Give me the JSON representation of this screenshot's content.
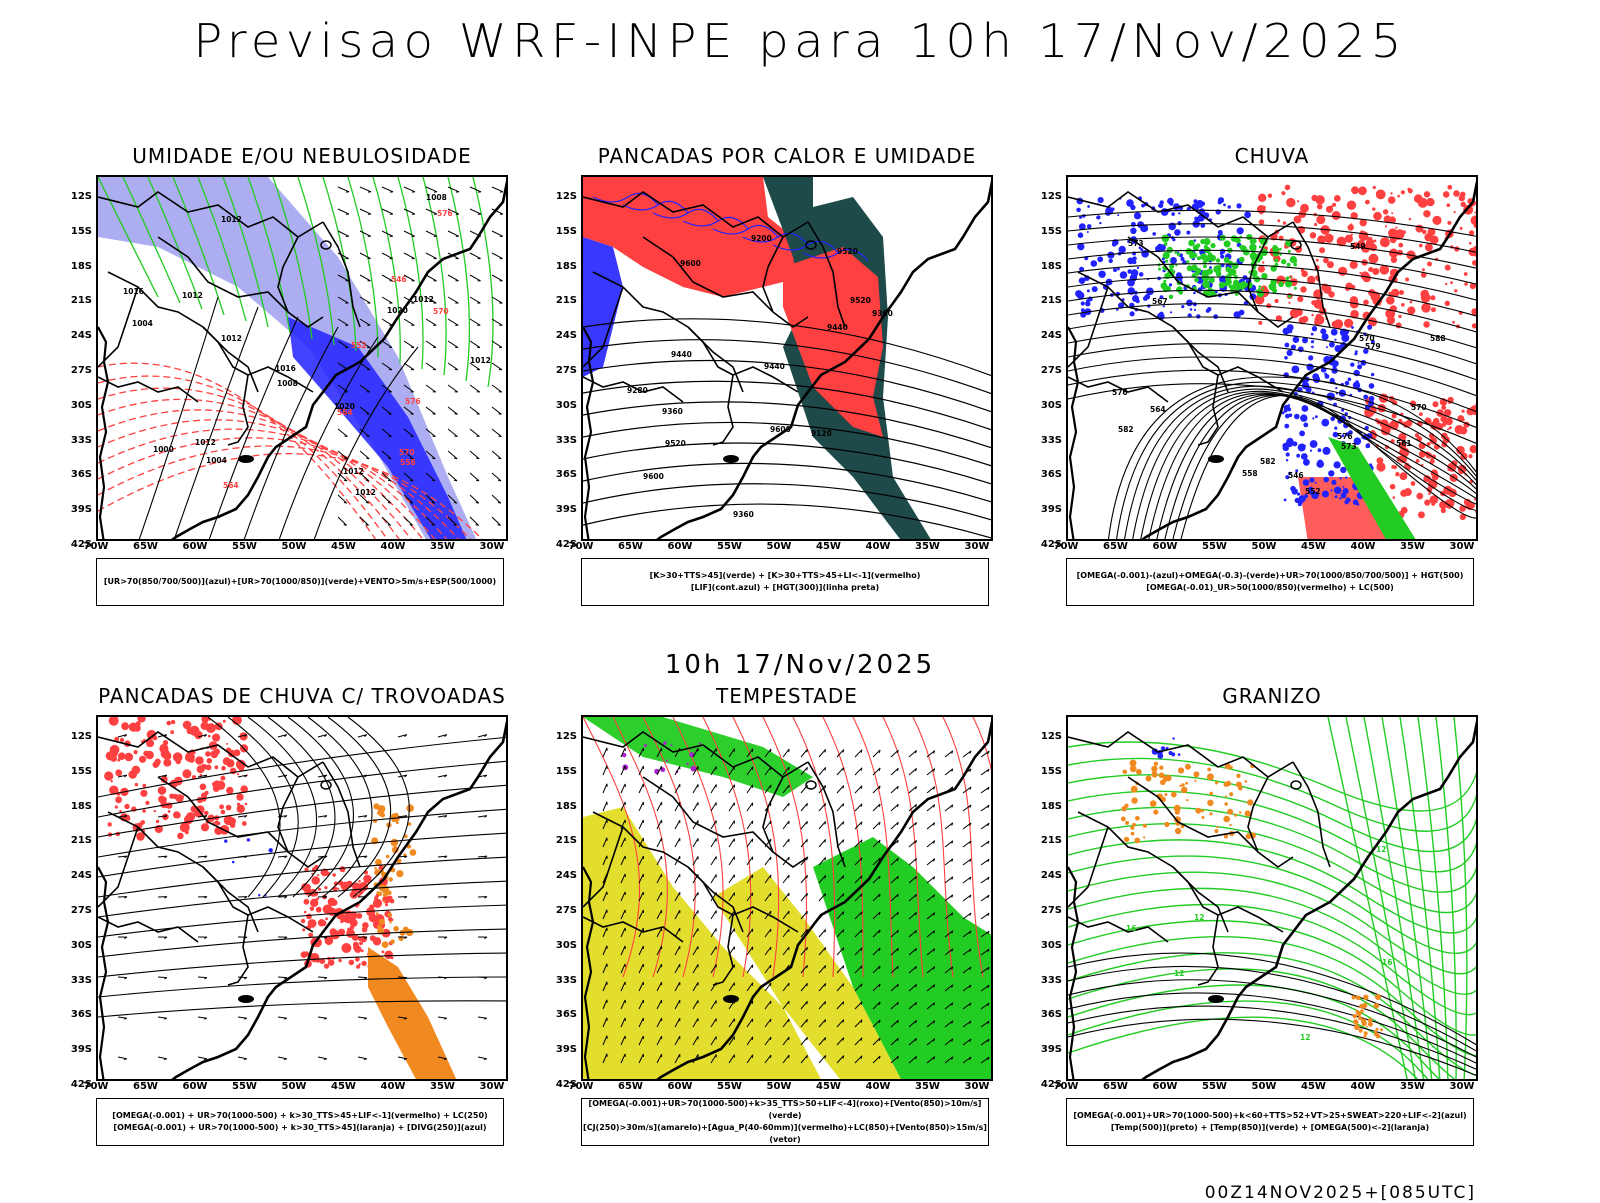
{
  "header": {
    "title": "Previsao WRF-INPE  para 10h 17/Nov/2025"
  },
  "subtitle": "10h 17/Nov/2025",
  "footer": "00Z14NOV2025+[085UTC]",
  "axes": {
    "lat": [
      "12S",
      "15S",
      "18S",
      "21S",
      "24S",
      "27S",
      "30S",
      "33S",
      "36S",
      "39S",
      "42S"
    ],
    "lon": [
      "70W",
      "65W",
      "60W",
      "55W",
      "50W",
      "45W",
      "40W",
      "35W",
      "30W"
    ]
  },
  "panels": [
    {
      "id": "umidade",
      "title": "UMIDADE E/OU NEBULOSIDADE",
      "legend": [
        "[UR>70(850/700/500)](azul)+[UR>70(1000/850)](verde)+VENTO>5m/s+ESP(500/1000)"
      ],
      "contour_labels": [
        "1012",
        "1012",
        "1012",
        "1012",
        "1012",
        "1012",
        "1012",
        "1012",
        "1008",
        "1004",
        "1000",
        "1016",
        "1016",
        "1020",
        "1020",
        "1008",
        "1004",
        "576",
        "576",
        "570",
        "570",
        "564",
        "564",
        "558",
        "552",
        "546"
      ]
    },
    {
      "id": "pancadas-calor",
      "title": "PANCADAS POR CALOR E UMIDADE",
      "legend": [
        "[K>30+TTS>45](verde) + [K>30+TTS>45+LI<-1](vermelho)",
        "[LIF](cont.azul) + [HGT(300)](linha preta)"
      ],
      "contour_labels": [
        "9600",
        "9520",
        "9600",
        "9520",
        "9600",
        "9440",
        "9360",
        "9520",
        "9360",
        "9440",
        "9280",
        "9200",
        "9120",
        "9440",
        "9360"
      ]
    },
    {
      "id": "chuva",
      "title": "CHUVA",
      "legend": [
        "[OMEGA(-0.001)-(azul)+OMEGA(-0.3)-(verde)+UR>70(1000/850/700/500)] + HGT(500)",
        "[OMEGA(-0.01)_UR>50(1000/850)(vermelho) + LC(500)"
      ],
      "contour_labels": [
        "588",
        "582",
        "582",
        "576",
        "570",
        "567",
        "564",
        "561",
        "558",
        "552",
        "549",
        "546",
        "576",
        "573",
        "570",
        "579",
        "573"
      ]
    },
    {
      "id": "trovoadas",
      "title": "PANCADAS DE CHUVA C/ TROVOADAS",
      "legend": [
        "[OMEGA(-0.001) + UR>70(1000-500) + k>30_TTS>45+LIF<-1](vermelho) + LC(250)",
        "[OMEGA(-0.001) + UR>70(1000-500) + k>30_TTS>45](laranja) + [DIVG(250)](azul)"
      ],
      "contour_labels": []
    },
    {
      "id": "tempestade",
      "title": "TEMPESTADE",
      "legend": [
        "[OMEGA(-0.001)+UR>70(1000-500)+k>35_TTS>50+LIF<-4](roxo)+[Vento(850)>10m/s](verde)",
        "[CJ(250)>30m/s](amarelo)+[Agua_P(40-60mm)](vermelho)+LC(850)+[Vento(850)>15m/s](vetor)"
      ],
      "contour_labels": []
    },
    {
      "id": "granizo",
      "title": "GRANIZO",
      "legend": [
        "[OMEGA(-0.001)+UR>70(1000-500)+k<60+TTS>52+VT>25+SWEAT>220+LIF<-2](azul)",
        "[Temp(500)](preto) + [Temp(850)](verde) + [OMEGA(500)<-2](laranja)"
      ],
      "contour_labels": [
        "12",
        "12",
        "16",
        "12",
        "16",
        "12"
      ]
    }
  ],
  "colors": {
    "red": "#ff4040",
    "green": "#22cc22",
    "blue": "#2222ff",
    "lightblue": "#9999ee",
    "darkteal": "#1f4a4a",
    "yellow": "#e3dd2e",
    "orange": "#f08a20",
    "purple": "#aa22cc"
  }
}
